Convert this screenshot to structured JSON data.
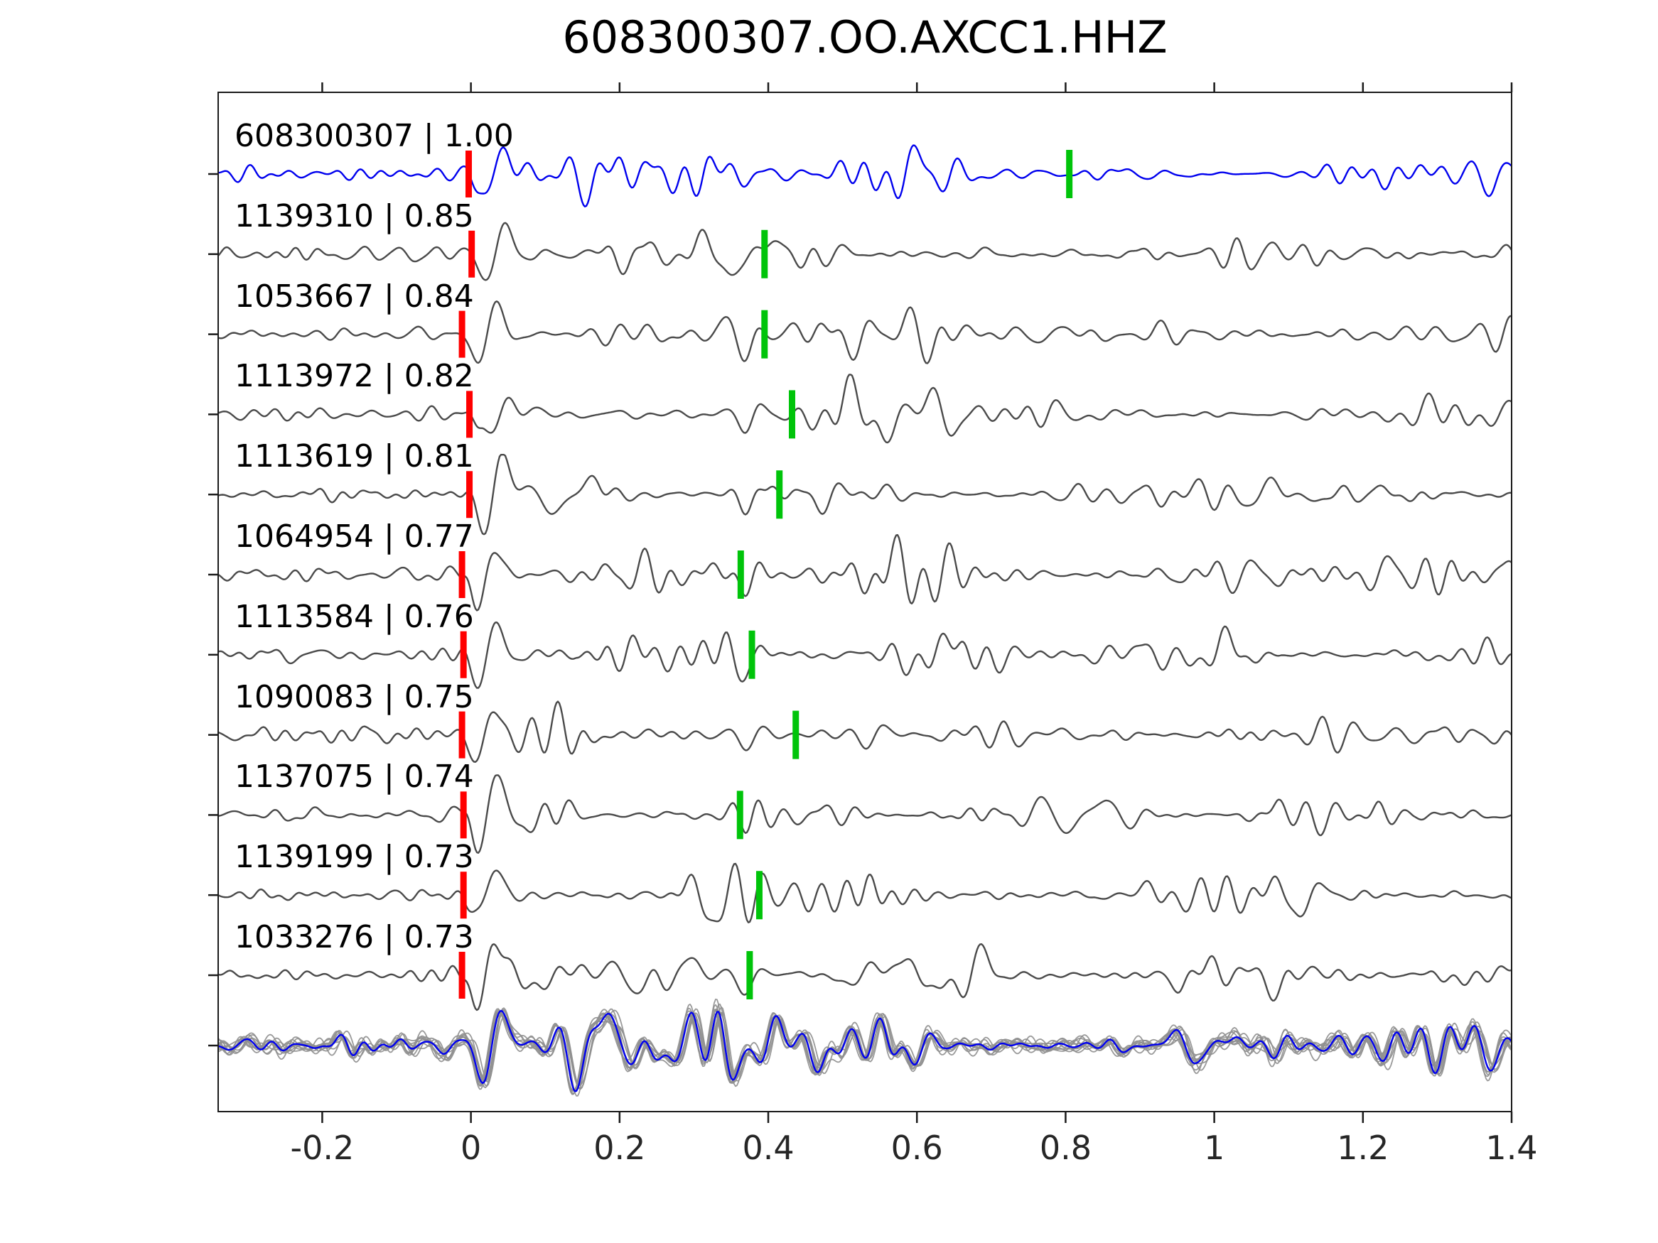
{
  "colors": {
    "template_trace": "#0000ee",
    "matched_trace": "#4a4a4a",
    "overlay_trace": "#8f8f8f",
    "p_pick": "#ff0000",
    "s_pick": "#00c40a",
    "axis": "#1a1a1a",
    "text": "#000000",
    "background": "#ffffff"
  },
  "chart_data": {
    "type": "line",
    "title": "608300307.OO.AXCC1.HHZ",
    "xlabel": "",
    "ylabel": "",
    "xlim": [
      -0.34,
      1.4
    ],
    "x_tick_values": [
      -0.2,
      0,
      0.2,
      0.4,
      0.6,
      0.8,
      1,
      1.2,
      1.4
    ],
    "x_tick_labels": [
      "-0.2",
      "0",
      "0.2",
      "0.4",
      "0.6",
      "0.8",
      "1",
      "1.2",
      "1.4"
    ],
    "grid": false,
    "legend": "none",
    "description": "Template waveform (blue, correlation 1.00) above ten matched detection waveforms (dark gray), each labeled 'event id | correlation'. Red vertical bars mark the alignment pick near 0 s; green vertical bars mark a secondary pick per trace. The bottom unlabeled row overlays all gray traces with the blue template.",
    "traces": [
      {
        "id": "608300307",
        "correlation": 1.0,
        "label": "608300307 | 1.00",
        "style": "template",
        "red_pick": -0.003,
        "green_pick": 0.805
      },
      {
        "id": "1139310",
        "correlation": 0.85,
        "label": "1139310 | 0.85",
        "style": "matched",
        "red_pick": 0.001,
        "green_pick": 0.395
      },
      {
        "id": "1053667",
        "correlation": 0.84,
        "label": "1053667 | 0.84",
        "style": "matched",
        "red_pick": -0.012,
        "green_pick": 0.395
      },
      {
        "id": "1113972",
        "correlation": 0.82,
        "label": "1113972 | 0.82",
        "style": "matched",
        "red_pick": -0.002,
        "green_pick": 0.432
      },
      {
        "id": "1113619",
        "correlation": 0.81,
        "label": "1113619 | 0.81",
        "style": "matched",
        "red_pick": -0.002,
        "green_pick": 0.415
      },
      {
        "id": "1064954",
        "correlation": 0.77,
        "label": "1064954 | 0.77",
        "style": "matched",
        "red_pick": -0.012,
        "green_pick": 0.363
      },
      {
        "id": "1113584",
        "correlation": 0.76,
        "label": "1113584 | 0.76",
        "style": "matched",
        "red_pick": -0.01,
        "green_pick": 0.378
      },
      {
        "id": "1090083",
        "correlation": 0.75,
        "label": "1090083 | 0.75",
        "style": "matched",
        "red_pick": -0.012,
        "green_pick": 0.437
      },
      {
        "id": "1137075",
        "correlation": 0.74,
        "label": "1137075 | 0.74",
        "style": "matched",
        "red_pick": -0.01,
        "green_pick": 0.362
      },
      {
        "id": "1139199",
        "correlation": 0.73,
        "label": "1139199 | 0.73",
        "style": "matched",
        "red_pick": -0.01,
        "green_pick": 0.388
      },
      {
        "id": "1033276",
        "correlation": 0.73,
        "label": "1033276 | 0.73",
        "style": "matched",
        "red_pick": -0.012,
        "green_pick": 0.375
      }
    ],
    "overlay_row": {
      "gray_count": 11,
      "has_template": true,
      "picks": "none"
    }
  }
}
